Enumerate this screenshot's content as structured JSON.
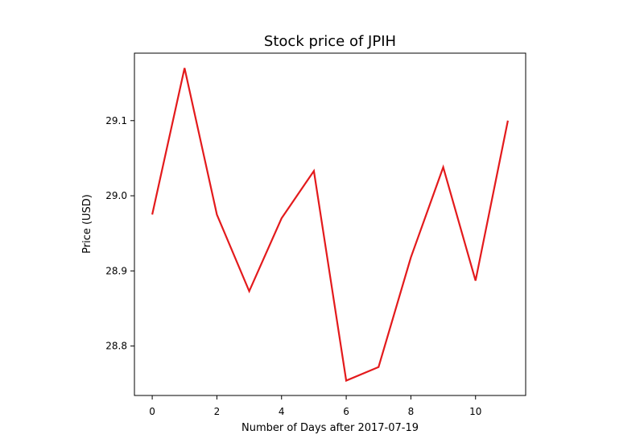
{
  "chart_data": {
    "type": "line",
    "title": "Stock price of JPIH",
    "xlabel": "Number of Days after 2017-07-19",
    "ylabel": "Price (USD)",
    "x": [
      0,
      1,
      2,
      3,
      4,
      5,
      6,
      7,
      8,
      9,
      10,
      11
    ],
    "series": [
      {
        "values": [
          28.975,
          29.17,
          28.975,
          28.873,
          28.97,
          29.033,
          28.754,
          28.772,
          28.918,
          29.038,
          28.887,
          29.1
        ],
        "color": "#e31a1c"
      }
    ],
    "xlim": [
      -0.55,
      11.55
    ],
    "ylim": [
      28.7342,
      29.1898
    ],
    "xticks": [
      0,
      2,
      4,
      6,
      8,
      10
    ],
    "xtick_labels": [
      "0",
      "2",
      "4",
      "6",
      "8",
      "10"
    ],
    "yticks": [
      28.8,
      28.9,
      29.0,
      29.1
    ],
    "ytick_labels": [
      "28.8",
      "28.9",
      "29.0",
      "29.1"
    ],
    "grid": false,
    "legend": false
  }
}
